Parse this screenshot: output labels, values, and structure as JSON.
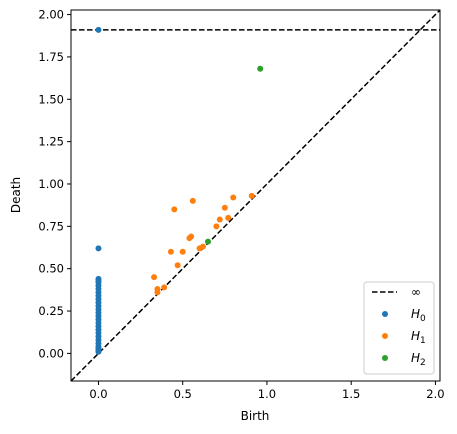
{
  "chart_data": {
    "type": "scatter",
    "title": "",
    "xlabel": "Birth",
    "ylabel": "Death",
    "xlim": [
      -0.163,
      2.027
    ],
    "ylim": [
      -0.163,
      2.027
    ],
    "xticks": [
      {
        "v": 0.0,
        "label": "0.0"
      },
      {
        "v": 0.5,
        "label": "0.5"
      },
      {
        "v": 1.0,
        "label": "1.0"
      },
      {
        "v": 1.5,
        "label": "1.5"
      },
      {
        "v": 2.0,
        "label": "2.0"
      }
    ],
    "yticks": [
      {
        "v": 0.0,
        "label": "0.00"
      },
      {
        "v": 0.25,
        "label": "0.25"
      },
      {
        "v": 0.5,
        "label": "0.50"
      },
      {
        "v": 0.75,
        "label": "0.75"
      },
      {
        "v": 1.0,
        "label": "1.00"
      },
      {
        "v": 1.25,
        "label": "1.25"
      },
      {
        "v": 1.5,
        "label": "1.50"
      },
      {
        "v": 1.75,
        "label": "1.75"
      },
      {
        "v": 2.0,
        "label": "2.00"
      }
    ],
    "grid": false,
    "legend_position": "lower right",
    "diagonal": {
      "style": "dashed",
      "color": "#000000"
    },
    "infinity_line": {
      "name": "∞",
      "y": 1.91,
      "style": "dashed",
      "color": "#000000"
    },
    "series": [
      {
        "name": "H",
        "subscript": "0",
        "color": "#1f77b4",
        "points": [
          [
            0,
            1.91
          ],
          [
            0,
            0.62
          ],
          [
            0,
            0.44
          ],
          [
            0,
            0.43
          ],
          [
            0,
            0.42
          ],
          [
            0,
            0.4
          ],
          [
            0,
            0.38
          ],
          [
            0,
            0.36
          ],
          [
            0,
            0.34
          ],
          [
            0,
            0.32
          ],
          [
            0,
            0.3
          ],
          [
            0,
            0.28
          ],
          [
            0,
            0.26
          ],
          [
            0,
            0.24
          ],
          [
            0,
            0.22
          ],
          [
            0,
            0.2
          ],
          [
            0,
            0.18
          ],
          [
            0,
            0.16
          ],
          [
            0,
            0.14
          ],
          [
            0,
            0.12
          ],
          [
            0,
            0.1
          ],
          [
            0,
            0.08
          ],
          [
            0,
            0.06
          ],
          [
            0,
            0.04
          ],
          [
            0,
            0.03
          ],
          [
            0,
            0.02
          ],
          [
            0,
            0.01
          ]
        ]
      },
      {
        "name": "H",
        "subscript": "1",
        "color": "#ff7f0e",
        "points": [
          [
            0.33,
            0.45
          ],
          [
            0.35,
            0.38
          ],
          [
            0.35,
            0.36
          ],
          [
            0.39,
            0.39
          ],
          [
            0.43,
            0.6
          ],
          [
            0.45,
            0.85
          ],
          [
            0.47,
            0.52
          ],
          [
            0.5,
            0.6
          ],
          [
            0.54,
            0.68
          ],
          [
            0.55,
            0.69
          ],
          [
            0.56,
            0.9
          ],
          [
            0.6,
            0.62
          ],
          [
            0.62,
            0.63
          ],
          [
            0.7,
            0.75
          ],
          [
            0.72,
            0.79
          ],
          [
            0.75,
            0.86
          ],
          [
            0.77,
            0.8
          ],
          [
            0.8,
            0.92
          ],
          [
            0.91,
            0.93
          ]
        ]
      },
      {
        "name": "H",
        "subscript": "2",
        "color": "#2ca02c",
        "points": [
          [
            0.65,
            0.66
          ],
          [
            0.96,
            1.68
          ]
        ]
      }
    ]
  }
}
